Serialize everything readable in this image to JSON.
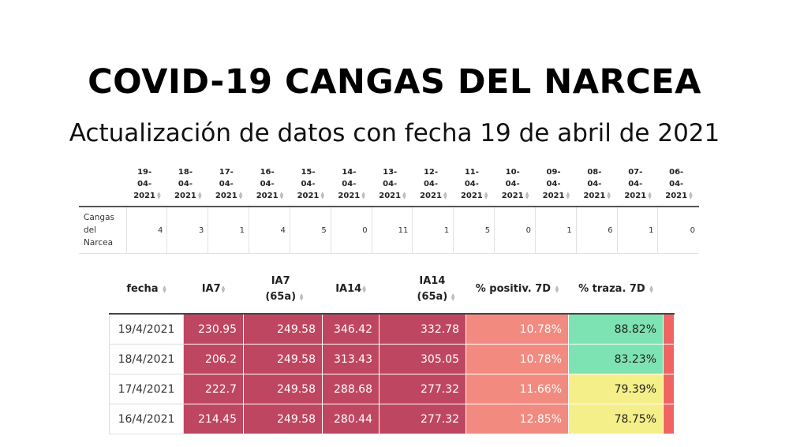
{
  "header": {
    "title": "COVID-19 CANGAS DEL NARCEA",
    "subtitle": "Actualización de datos con fecha 19 de abril de 2021"
  },
  "daily_table": {
    "dates": [
      "19-04-2021",
      "18-04-2021",
      "17-04-2021",
      "16-04-2021",
      "15-04-2021",
      "14-04-2021",
      "13-04-2021",
      "12-04-2021",
      "11-04-2021",
      "10-04-2021",
      "09-04-2021",
      "08-04-2021",
      "07-04-2021",
      "06-04-2021"
    ],
    "row_label": "Cangas del Narcea",
    "values": [
      "4",
      "3",
      "1",
      "4",
      "5",
      "0",
      "11",
      "1",
      "5",
      "0",
      "1",
      "6",
      "1",
      "0"
    ]
  },
  "weekly_table": {
    "headers": {
      "fecha": "fecha",
      "ia7": "IA7",
      "ia7_65": "IA7 (65a)",
      "ia14": "IA14",
      "ia14_65": "IA14 (65a)",
      "positiv": "% positiv. 7D",
      "traza": "% traza. 7D"
    },
    "rows": [
      {
        "fecha": "19/4/2021",
        "ia7": "230.95",
        "ia7_65": "249.58",
        "ia14": "346.42",
        "ia14_65": "332.78",
        "positiv": "10.78%",
        "traza": "88.82%",
        "traza_color": "green"
      },
      {
        "fecha": "18/4/2021",
        "ia7": "206.2",
        "ia7_65": "249.58",
        "ia14": "313.43",
        "ia14_65": "305.05",
        "positiv": "10.78%",
        "traza": "83.23%",
        "traza_color": "green"
      },
      {
        "fecha": "17/4/2021",
        "ia7": "222.7",
        "ia7_65": "249.58",
        "ia14": "288.68",
        "ia14_65": "277.32",
        "positiv": "11.66%",
        "traza": "79.39%",
        "traza_color": "yellow"
      },
      {
        "fecha": "16/4/2021",
        "ia7": "214.45",
        "ia7_65": "249.58",
        "ia14": "280.44",
        "ia14_65": "277.32",
        "positiv": "12.85%",
        "traza": "78.75%",
        "traza_color": "yellow"
      }
    ]
  },
  "colors": {
    "high": "#bf4660",
    "medium": "#f28a80",
    "good": "#7ee3b2",
    "warning": "#f4ef88"
  },
  "icons": {
    "sort": "sort-arrows-icon"
  }
}
